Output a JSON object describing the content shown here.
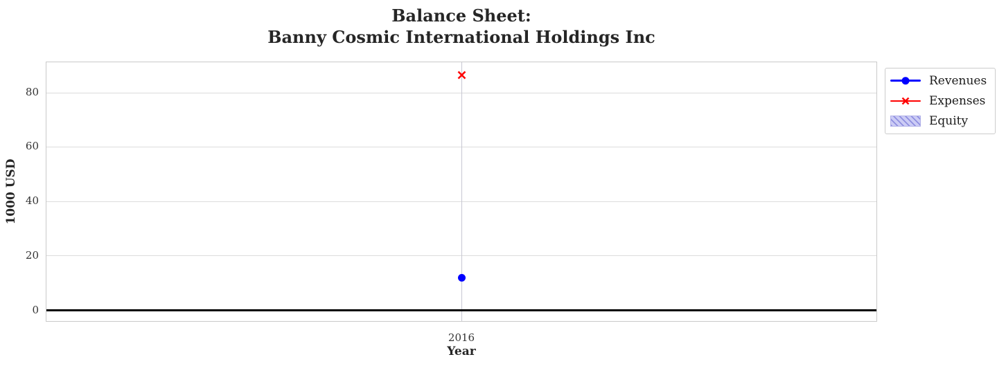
{
  "title": {
    "line1": "Balance Sheet:",
    "line2": "Banny Cosmic International Holdings Inc"
  },
  "chart_data": {
    "type": "line",
    "title": "Balance Sheet:\nBanny Cosmic International Holdings Inc",
    "x": [
      2016
    ],
    "series": [
      {
        "name": "Revenues",
        "type": "line",
        "marker": "circle",
        "color": "#0000ff",
        "values": [
          12
        ]
      },
      {
        "name": "Expenses",
        "type": "line",
        "marker": "x",
        "color": "#ff0000",
        "values": [
          87
        ]
      },
      {
        "name": "Equity",
        "type": "bar",
        "hatch": "///",
        "color": "#ccccf5",
        "hatch_color": "#8f8fe0",
        "values": [
          0
        ]
      }
    ],
    "xlabel": "Year",
    "ylabel": "1000 USD",
    "xticks": [
      "2016"
    ],
    "yticks": [
      0,
      20,
      40,
      60,
      80
    ],
    "ylim": [
      -4,
      91.3
    ],
    "grid": true,
    "zero_line": {
      "y": 0,
      "color": "#000000"
    },
    "legend_position": "outside-upper-right",
    "colors": {
      "grid_horizontal": "#dcdcdc",
      "grid_vertical": "#c7c7d2",
      "spine": "#c9c9c9",
      "text": "#262626",
      "background": "#ffffff"
    }
  }
}
